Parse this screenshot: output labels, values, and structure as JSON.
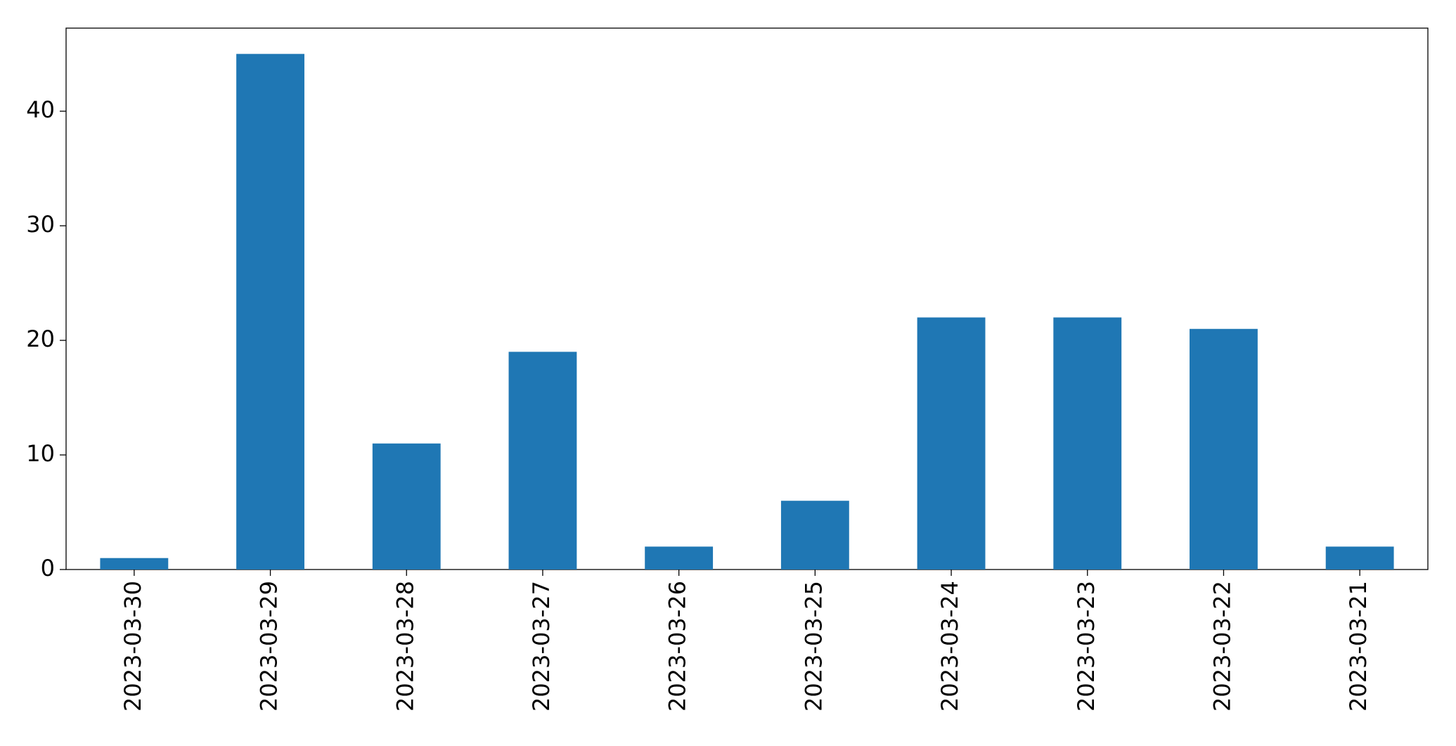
{
  "chart_data": {
    "type": "bar",
    "categories": [
      "2023-03-30",
      "2023-03-29",
      "2023-03-28",
      "2023-03-27",
      "2023-03-26",
      "2023-03-25",
      "2023-03-24",
      "2023-03-23",
      "2023-03-22",
      "2023-03-21"
    ],
    "values": [
      1,
      45,
      11,
      19,
      2,
      6,
      22,
      22,
      21,
      2
    ],
    "color": "#1f77b4",
    "ylim": [
      0,
      47.25
    ],
    "yticks": [
      0,
      10,
      20,
      30,
      40
    ],
    "grid": false
  }
}
